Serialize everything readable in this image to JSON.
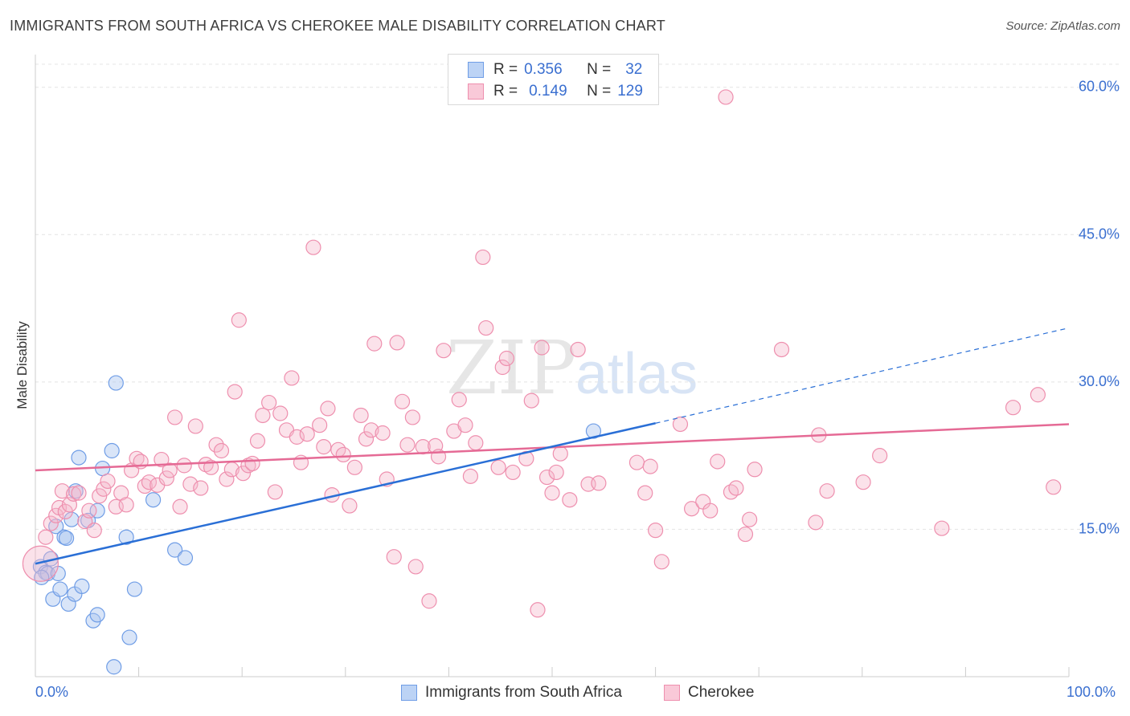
{
  "title": "IMMIGRANTS FROM SOUTH AFRICA VS CHEROKEE MALE DISABILITY CORRELATION CHART",
  "source": "Source: ZipAtlas.com",
  "watermark": {
    "zip": "ZIP",
    "atlas": "atlas"
  },
  "legend": {
    "r_label": "R =",
    "n_label": "N =",
    "series1": {
      "r": "0.356",
      "n": "32"
    },
    "series2": {
      "r": "0.149",
      "n": "129"
    }
  },
  "chart_data": {
    "type": "scatter",
    "title": "IMMIGRANTS FROM SOUTH AFRICA VS CHEROKEE MALE DISABILITY CORRELATION CHART",
    "xlabel": "",
    "ylabel": "Male Disability",
    "xlim": [
      0,
      100
    ],
    "ylim": [
      0,
      63
    ],
    "x_tick_labels": [
      "0.0%",
      "100.0%"
    ],
    "y_ticks": [
      15,
      30,
      45,
      60
    ],
    "y_tick_labels": [
      "15.0%",
      "30.0%",
      "45.0%",
      "60.0%"
    ],
    "grid": true,
    "legend_position": "top-center",
    "colors": {
      "blue": "#6f9de6",
      "blue_line": "#2a6fd6",
      "pink": "#ee8fae",
      "pink_line": "#e56a95"
    },
    "series": [
      {
        "name": "Immigrants from South Africa",
        "color": "#6f9de6",
        "trend": {
          "x0": 0,
          "y0": 11.5,
          "x1": 60,
          "y1": 25.8,
          "dash_to": 100,
          "dash_y": 35.5
        },
        "points": [
          [
            0.5,
            11.2
          ],
          [
            1,
            10.6
          ],
          [
            1.2,
            10.5
          ],
          [
            0.6,
            10.1
          ],
          [
            1.5,
            12.0
          ],
          [
            1.7,
            7.9
          ],
          [
            2.0,
            15.3
          ],
          [
            2.2,
            10.5
          ],
          [
            2.4,
            8.9
          ],
          [
            2.8,
            14.2
          ],
          [
            3.0,
            14.1
          ],
          [
            3.2,
            7.4
          ],
          [
            3.5,
            16.0
          ],
          [
            3.8,
            8.4
          ],
          [
            3.9,
            18.9
          ],
          [
            4.2,
            22.3
          ],
          [
            4.5,
            9.2
          ],
          [
            5.1,
            15.9
          ],
          [
            5.6,
            5.7
          ],
          [
            6.0,
            6.3
          ],
          [
            6.0,
            16.9
          ],
          [
            6.5,
            21.2
          ],
          [
            7.4,
            23.0
          ],
          [
            7.8,
            29.9
          ],
          [
            8.8,
            14.2
          ],
          [
            9.1,
            4.0
          ],
          [
            9.6,
            8.9
          ],
          [
            11.4,
            18.0
          ],
          [
            13.5,
            12.9
          ],
          [
            14.5,
            12.1
          ],
          [
            7.6,
            1.0
          ],
          [
            54,
            25.0
          ]
        ]
      },
      {
        "name": "Cherokee",
        "color": "#ee8fae",
        "trend": {
          "x0": 0,
          "y0": 21.0,
          "x1": 100,
          "y1": 25.7
        },
        "points": [
          [
            0.5,
            11.5
          ],
          [
            1.0,
            14.2
          ],
          [
            1.5,
            15.6
          ],
          [
            2.0,
            16.4
          ],
          [
            2.3,
            17.2
          ],
          [
            2.6,
            18.9
          ],
          [
            2.9,
            16.8
          ],
          [
            3.3,
            17.5
          ],
          [
            3.7,
            18.6
          ],
          [
            4.2,
            18.7
          ],
          [
            4.8,
            15.8
          ],
          [
            5.2,
            16.9
          ],
          [
            5.7,
            14.9
          ],
          [
            6.2,
            18.4
          ],
          [
            6.6,
            19.1
          ],
          [
            7.0,
            19.9
          ],
          [
            7.8,
            17.3
          ],
          [
            8.3,
            18.7
          ],
          [
            8.8,
            17.5
          ],
          [
            9.3,
            21.0
          ],
          [
            9.8,
            22.2
          ],
          [
            10.2,
            21.9
          ],
          [
            10.6,
            19.4
          ],
          [
            11.0,
            19.8
          ],
          [
            11.8,
            19.5
          ],
          [
            12.2,
            22.1
          ],
          [
            12.7,
            20.2
          ],
          [
            13.0,
            21.0
          ],
          [
            13.5,
            26.4
          ],
          [
            14.0,
            17.3
          ],
          [
            14.4,
            21.5
          ],
          [
            15.0,
            19.6
          ],
          [
            15.5,
            25.5
          ],
          [
            16.0,
            19.2
          ],
          [
            16.5,
            21.6
          ],
          [
            17.0,
            21.3
          ],
          [
            17.5,
            23.6
          ],
          [
            18.0,
            23.0
          ],
          [
            18.5,
            20.1
          ],
          [
            19.0,
            21.1
          ],
          [
            19.3,
            29.0
          ],
          [
            19.7,
            36.3
          ],
          [
            20.1,
            20.7
          ],
          [
            20.6,
            21.5
          ],
          [
            21.0,
            21.7
          ],
          [
            21.5,
            24.0
          ],
          [
            22.0,
            26.6
          ],
          [
            22.6,
            27.9
          ],
          [
            23.2,
            18.8
          ],
          [
            23.7,
            26.8
          ],
          [
            24.3,
            25.1
          ],
          [
            24.8,
            30.4
          ],
          [
            25.3,
            24.4
          ],
          [
            25.7,
            21.8
          ],
          [
            26.3,
            24.7
          ],
          [
            26.9,
            43.7
          ],
          [
            27.5,
            25.6
          ],
          [
            27.9,
            23.4
          ],
          [
            28.3,
            27.3
          ],
          [
            28.7,
            18.5
          ],
          [
            29.3,
            23.1
          ],
          [
            29.8,
            22.6
          ],
          [
            30.4,
            17.4
          ],
          [
            30.9,
            21.3
          ],
          [
            31.5,
            26.6
          ],
          [
            32.0,
            24.2
          ],
          [
            32.5,
            25.1
          ],
          [
            32.8,
            33.9
          ],
          [
            33.6,
            24.8
          ],
          [
            34.0,
            20.1
          ],
          [
            34.7,
            12.2
          ],
          [
            35.0,
            34.0
          ],
          [
            35.5,
            28.0
          ],
          [
            36.0,
            23.6
          ],
          [
            36.5,
            26.4
          ],
          [
            36.8,
            11.2
          ],
          [
            37.5,
            23.4
          ],
          [
            38.1,
            7.7
          ],
          [
            38.7,
            23.5
          ],
          [
            39.0,
            22.4
          ],
          [
            39.5,
            33.2
          ],
          [
            40.5,
            25.0
          ],
          [
            41.0,
            28.2
          ],
          [
            41.6,
            25.6
          ],
          [
            42.1,
            20.4
          ],
          [
            42.6,
            23.8
          ],
          [
            43.3,
            42.7
          ],
          [
            43.6,
            35.5
          ],
          [
            44.8,
            21.3
          ],
          [
            45.2,
            31.5
          ],
          [
            45.6,
            32.4
          ],
          [
            46.2,
            20.8
          ],
          [
            47.5,
            22.2
          ],
          [
            48.0,
            28.1
          ],
          [
            48.6,
            6.8
          ],
          [
            49.0,
            33.5
          ],
          [
            49.5,
            20.3
          ],
          [
            50.0,
            18.7
          ],
          [
            50.4,
            20.8
          ],
          [
            50.8,
            22.7
          ],
          [
            51.7,
            18.0
          ],
          [
            52.5,
            33.3
          ],
          [
            53.5,
            19.6
          ],
          [
            54.5,
            19.7
          ],
          [
            58.2,
            21.8
          ],
          [
            59.0,
            18.7
          ],
          [
            59.5,
            21.4
          ],
          [
            60.0,
            14.9
          ],
          [
            60.6,
            11.7
          ],
          [
            62.4,
            25.7
          ],
          [
            63.5,
            17.1
          ],
          [
            64.6,
            17.8
          ],
          [
            65.3,
            16.9
          ],
          [
            66.0,
            21.9
          ],
          [
            66.8,
            59.0
          ],
          [
            67.3,
            18.8
          ],
          [
            67.8,
            19.2
          ],
          [
            68.7,
            14.5
          ],
          [
            69.1,
            16.0
          ],
          [
            69.6,
            21.1
          ],
          [
            72.2,
            33.3
          ],
          [
            75.5,
            15.7
          ],
          [
            75.8,
            24.6
          ],
          [
            76.6,
            18.9
          ],
          [
            80.1,
            19.8
          ],
          [
            81.7,
            22.5
          ],
          [
            87.7,
            15.1
          ],
          [
            94.6,
            27.4
          ],
          [
            97.0,
            28.7
          ],
          [
            98.5,
            19.3
          ]
        ]
      }
    ]
  },
  "bottom_legend": {
    "series1": "Immigrants from South Africa",
    "series2": "Cherokee"
  }
}
